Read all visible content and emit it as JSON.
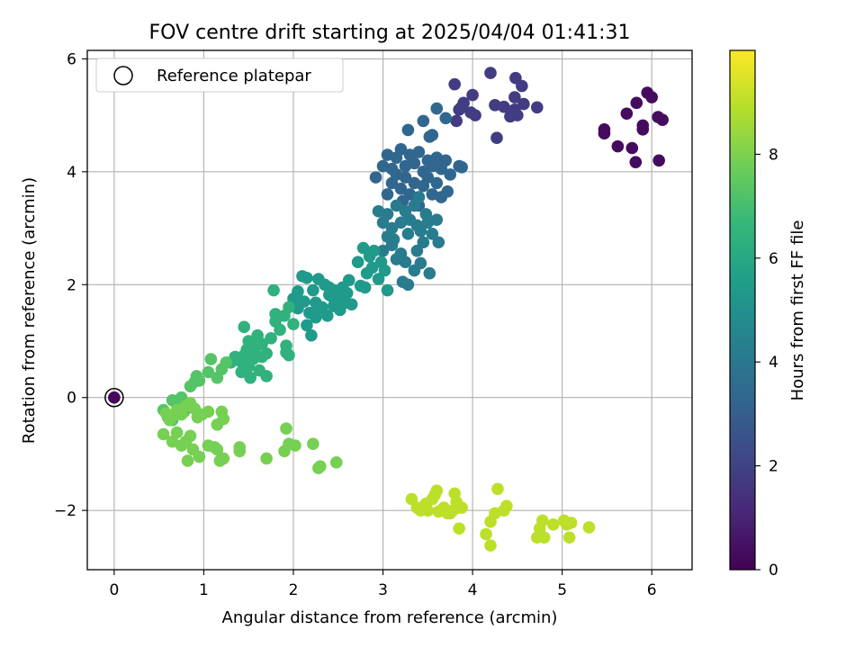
{
  "chart_data": {
    "type": "scatter",
    "title": "FOV centre drift starting at 2025/04/04 01:41:31",
    "xlabel": "Angular distance from reference (arcmin)",
    "ylabel": "Rotation from reference (arcmin)",
    "xlim": [
      -0.3,
      6.45
    ],
    "ylim": [
      -3.05,
      6.15
    ],
    "xticks": [
      0,
      1,
      2,
      3,
      4,
      5,
      6
    ],
    "yticks": [
      -2,
      0,
      2,
      4,
      6
    ],
    "xtick_labels": [
      "0",
      "1",
      "2",
      "3",
      "4",
      "5",
      "6"
    ],
    "ytick_labels": [
      "−2",
      "0",
      "2",
      "4",
      "6"
    ],
    "grid": true,
    "legend": {
      "label": "Reference platepar",
      "placement": "top-left"
    },
    "colorbar": {
      "label": "Hours from first FF file",
      "range": [
        0,
        10
      ],
      "ticks": [
        0,
        2,
        4,
        6,
        8
      ],
      "tick_labels": [
        "0",
        "2",
        "4",
        "6",
        "8"
      ],
      "colormap": "viridis",
      "colors": [
        "#440154",
        "#482878",
        "#3e4989",
        "#31688e",
        "#26828e",
        "#1f9e89",
        "#35b779",
        "#6ece58",
        "#b5de2b",
        "#fde725"
      ]
    },
    "reference_point": {
      "x": 0,
      "y": 0,
      "hours": 0.2
    },
    "series": [
      {
        "hours": 0.3,
        "points": [
          [
            5.47,
            4.75
          ],
          [
            5.47,
            4.68
          ],
          [
            5.62,
            4.45
          ],
          [
            5.72,
            5.03
          ],
          [
            5.78,
            4.42
          ],
          [
            5.82,
            4.17
          ],
          [
            5.83,
            5.22
          ],
          [
            5.9,
            4.82
          ],
          [
            5.9,
            4.75
          ],
          [
            5.95,
            5.4
          ],
          [
            6.0,
            5.32
          ],
          [
            6.07,
            4.97
          ],
          [
            6.12,
            4.92
          ],
          [
            6.08,
            4.2
          ]
        ]
      },
      {
        "hours": 1.8,
        "points": [
          [
            3.82,
            4.9
          ],
          [
            3.85,
            5.1
          ],
          [
            3.9,
            5.22
          ],
          [
            3.98,
            5.05
          ],
          [
            4.0,
            5.36
          ],
          [
            4.03,
            5.0
          ],
          [
            4.2,
            5.75
          ],
          [
            4.25,
            5.18
          ],
          [
            4.27,
            4.6
          ],
          [
            4.35,
            5.15
          ],
          [
            4.42,
            4.98
          ],
          [
            4.47,
            5.32
          ],
          [
            4.5,
            5.0
          ],
          [
            4.48,
            5.66
          ],
          [
            4.55,
            5.52
          ],
          [
            4.57,
            5.2
          ],
          [
            4.72,
            5.14
          ],
          [
            4.47,
            5.1
          ],
          [
            3.8,
            5.55
          ],
          [
            3.88,
            5.15
          ]
        ]
      },
      {
        "hours": 3.3,
        "points": [
          [
            2.92,
            3.9
          ],
          [
            3.0,
            4.1
          ],
          [
            3.05,
            4.3
          ],
          [
            3.1,
            4.05
          ],
          [
            3.15,
            4.25
          ],
          [
            3.2,
            4.4
          ],
          [
            3.25,
            4.1
          ],
          [
            3.3,
            4.3
          ],
          [
            3.35,
            4.15
          ],
          [
            3.4,
            4.35
          ],
          [
            3.45,
            4.0
          ],
          [
            3.5,
            4.2
          ],
          [
            3.55,
            4.1
          ],
          [
            3.6,
            4.25
          ],
          [
            3.65,
            4.05
          ],
          [
            3.7,
            4.2
          ],
          [
            3.75,
            3.95
          ],
          [
            3.85,
            4.1
          ],
          [
            3.88,
            4.08
          ],
          [
            3.55,
            4.65
          ],
          [
            3.45,
            4.9
          ],
          [
            3.52,
            4.62
          ],
          [
            3.28,
            4.74
          ],
          [
            3.6,
            5.12
          ],
          [
            3.7,
            4.95
          ],
          [
            3.05,
            3.6
          ],
          [
            3.1,
            3.8
          ],
          [
            3.15,
            3.95
          ],
          [
            3.2,
            3.7
          ],
          [
            3.25,
            3.9
          ],
          [
            3.3,
            3.6
          ],
          [
            3.35,
            3.8
          ],
          [
            3.4,
            3.55
          ],
          [
            3.45,
            3.75
          ],
          [
            3.5,
            3.9
          ],
          [
            3.55,
            3.6
          ],
          [
            3.6,
            3.8
          ],
          [
            3.65,
            3.55
          ],
          [
            3.72,
            3.65
          ],
          [
            3.22,
            3.48
          ],
          [
            3.4,
            3.4
          ]
        ]
      },
      {
        "hours": 4.2,
        "points": [
          [
            2.95,
            3.3
          ],
          [
            3.0,
            3.1
          ],
          [
            3.05,
            3.25
          ],
          [
            3.1,
            3.0
          ],
          [
            3.12,
            2.8
          ],
          [
            3.15,
            3.4
          ],
          [
            3.2,
            3.1
          ],
          [
            3.25,
            3.3
          ],
          [
            3.28,
            2.9
          ],
          [
            3.3,
            3.15
          ],
          [
            3.35,
            3.4
          ],
          [
            3.38,
            3.05
          ],
          [
            3.42,
            2.95
          ],
          [
            3.48,
            3.25
          ],
          [
            3.5,
            3.1
          ],
          [
            3.55,
            2.9
          ],
          [
            3.6,
            3.15
          ],
          [
            3.62,
            2.75
          ],
          [
            3.1,
            2.7
          ],
          [
            3.2,
            2.55
          ],
          [
            3.05,
            2.85
          ],
          [
            3.15,
            2.45
          ],
          [
            3.0,
            2.6
          ],
          [
            3.25,
            2.4
          ],
          [
            3.38,
            2.6
          ],
          [
            3.42,
            2.38
          ],
          [
            3.52,
            2.2
          ],
          [
            3.35,
            2.25
          ],
          [
            3.28,
            2.0
          ],
          [
            3.22,
            2.05
          ],
          [
            3.4,
            3.55
          ],
          [
            3.45,
            2.75
          ]
        ]
      },
      {
        "hours": 5.4,
        "points": [
          [
            2.72,
            2.4
          ],
          [
            2.78,
            2.65
          ],
          [
            2.82,
            2.2
          ],
          [
            2.85,
            2.5
          ],
          [
            2.88,
            2.3
          ],
          [
            2.9,
            2.6
          ],
          [
            2.95,
            2.1
          ],
          [
            2.98,
            2.4
          ],
          [
            3.02,
            2.25
          ],
          [
            3.05,
            1.9
          ],
          [
            2.8,
            1.95
          ],
          [
            2.75,
            1.98
          ],
          [
            2.62,
            2.08
          ],
          [
            2.55,
            1.95
          ],
          [
            2.6,
            1.85
          ],
          [
            2.5,
            1.72
          ],
          [
            2.42,
            1.8
          ],
          [
            2.4,
            1.95
          ],
          [
            2.35,
            2.0
          ],
          [
            2.28,
            2.1
          ],
          [
            2.22,
            1.9
          ],
          [
            2.15,
            2.12
          ],
          [
            2.1,
            2.15
          ],
          [
            2.05,
            1.88
          ],
          [
            2.0,
            1.75
          ],
          [
            2.05,
            1.58
          ],
          [
            2.12,
            1.7
          ],
          [
            2.18,
            1.5
          ],
          [
            2.25,
            1.68
          ],
          [
            2.32,
            1.6
          ],
          [
            2.38,
            1.45
          ],
          [
            2.45,
            1.62
          ],
          [
            2.52,
            1.55
          ],
          [
            2.58,
            1.68
          ],
          [
            2.15,
            1.28
          ],
          [
            2.2,
            1.1
          ],
          [
            2.25,
            1.42
          ],
          [
            2.3,
            1.58
          ],
          [
            2.4,
            1.82
          ],
          [
            2.45,
            1.9
          ],
          [
            2.55,
            1.82
          ],
          [
            2.65,
            1.65
          ]
        ]
      },
      {
        "hours": 6.4,
        "points": [
          [
            1.45,
            1.25
          ],
          [
            1.5,
            1.0
          ],
          [
            1.55,
            0.85
          ],
          [
            1.6,
            1.1
          ],
          [
            1.65,
            0.95
          ],
          [
            1.7,
            0.78
          ],
          [
            1.75,
            1.05
          ],
          [
            1.8,
            1.35
          ],
          [
            1.85,
            1.2
          ],
          [
            1.9,
            1.45
          ],
          [
            1.95,
            1.6
          ],
          [
            2.0,
            1.3
          ],
          [
            1.45,
            0.75
          ],
          [
            1.5,
            0.55
          ],
          [
            1.52,
            0.35
          ],
          [
            1.55,
            0.68
          ],
          [
            1.58,
            0.9
          ],
          [
            1.62,
            0.48
          ],
          [
            1.65,
            0.72
          ],
          [
            1.7,
            0.38
          ],
          [
            1.4,
            0.65
          ],
          [
            1.42,
            0.45
          ],
          [
            1.48,
            0.85
          ],
          [
            1.35,
            0.72
          ],
          [
            1.3,
            0.62
          ],
          [
            1.95,
            0.75
          ],
          [
            1.92,
            0.8
          ],
          [
            1.92,
            0.92
          ],
          [
            1.8,
            1.48
          ],
          [
            1.78,
            1.9
          ]
        ]
      },
      {
        "hours": 7.3,
        "points": [
          [
            0.85,
            0.2
          ],
          [
            0.9,
            0.28
          ],
          [
            0.92,
            0.38
          ],
          [
            0.95,
            0.3
          ],
          [
            1.05,
            0.45
          ],
          [
            1.08,
            0.68
          ],
          [
            1.15,
            0.35
          ],
          [
            1.2,
            0.5
          ],
          [
            1.25,
            0.62
          ],
          [
            0.65,
            -0.05
          ],
          [
            0.7,
            -0.12
          ],
          [
            0.75,
            0.0
          ],
          [
            0.78,
            -0.25
          ],
          [
            0.6,
            -0.35
          ],
          [
            0.55,
            -0.22
          ],
          [
            0.65,
            -0.4
          ]
        ]
      },
      {
        "hours": 7.9,
        "points": [
          [
            0.58,
            -0.28
          ],
          [
            0.62,
            -0.4
          ],
          [
            0.68,
            -0.3
          ],
          [
            0.7,
            -0.22
          ],
          [
            0.75,
            -0.3
          ],
          [
            0.8,
            -0.15
          ],
          [
            0.85,
            -0.1
          ],
          [
            0.9,
            -0.2
          ],
          [
            0.93,
            -0.35
          ],
          [
            0.98,
            -0.3
          ],
          [
            1.05,
            -0.25
          ],
          [
            1.15,
            -0.48
          ],
          [
            1.2,
            -0.25
          ],
          [
            1.22,
            -0.38
          ],
          [
            0.55,
            -0.65
          ],
          [
            0.65,
            -0.78
          ],
          [
            0.7,
            -0.62
          ],
          [
            0.75,
            -0.85
          ],
          [
            0.8,
            -0.78
          ],
          [
            0.85,
            -0.68
          ],
          [
            0.88,
            -0.92
          ],
          [
            0.95,
            -1.05
          ],
          [
            0.82,
            -1.12
          ],
          [
            1.05,
            -0.85
          ],
          [
            1.12,
            -0.88
          ],
          [
            1.15,
            -0.92
          ],
          [
            1.18,
            -1.12
          ],
          [
            1.22,
            -1.08
          ],
          [
            1.4,
            -0.88
          ],
          [
            1.4,
            -0.95
          ],
          [
            1.7,
            -1.08
          ],
          [
            1.9,
            -0.95
          ],
          [
            1.92,
            -0.55
          ],
          [
            1.95,
            -0.82
          ],
          [
            2.02,
            -0.85
          ],
          [
            2.22,
            -0.82
          ],
          [
            2.28,
            -1.25
          ],
          [
            2.3,
            -1.22
          ],
          [
            2.48,
            -1.15
          ]
        ]
      },
      {
        "hours": 9.0,
        "points": [
          [
            3.32,
            -1.8
          ],
          [
            3.38,
            -1.95
          ],
          [
            3.42,
            -2.0
          ],
          [
            3.48,
            -1.88
          ],
          [
            3.5,
            -2.0
          ],
          [
            3.55,
            -1.8
          ],
          [
            3.58,
            -1.72
          ],
          [
            3.6,
            -1.65
          ],
          [
            3.62,
            -2.02
          ],
          [
            3.68,
            -1.95
          ],
          [
            3.72,
            -2.05
          ],
          [
            3.75,
            -2.05
          ],
          [
            3.78,
            -2.0
          ],
          [
            3.8,
            -1.7
          ],
          [
            3.82,
            -1.85
          ],
          [
            3.85,
            -1.95
          ],
          [
            3.88,
            -1.95
          ],
          [
            3.85,
            -2.32
          ],
          [
            4.15,
            -2.42
          ],
          [
            4.2,
            -2.62
          ],
          [
            4.2,
            -2.2
          ],
          [
            4.25,
            -2.05
          ],
          [
            4.28,
            -1.62
          ],
          [
            4.35,
            -2.0
          ],
          [
            4.38,
            -1.92
          ],
          [
            4.72,
            -2.48
          ],
          [
            4.75,
            -2.32
          ],
          [
            4.78,
            -2.18
          ],
          [
            4.8,
            -2.48
          ],
          [
            4.9,
            -2.25
          ],
          [
            5.02,
            -2.18
          ],
          [
            5.05,
            -2.25
          ],
          [
            5.08,
            -2.48
          ],
          [
            5.1,
            -2.22
          ],
          [
            5.3,
            -2.3
          ]
        ]
      }
    ]
  }
}
